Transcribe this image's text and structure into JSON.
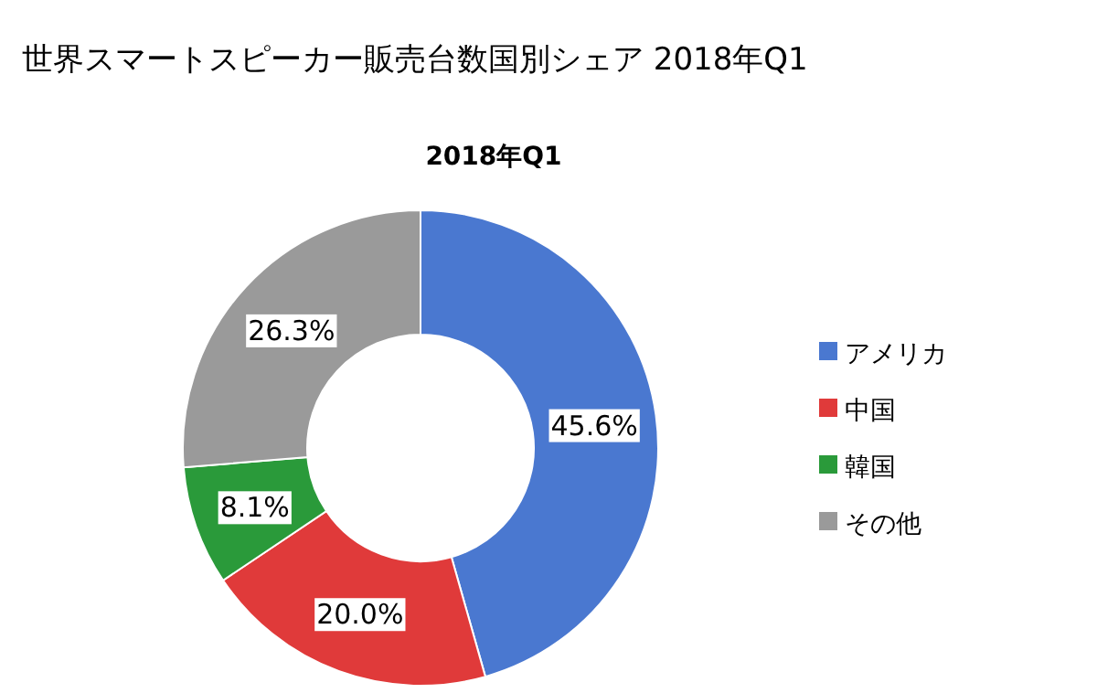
{
  "chart_data": {
    "type": "donut",
    "title": "世界スマートスピーカー販売台数国別シェア 2018年Q1",
    "subtitle": "2018年Q1",
    "categories": [
      "アメリカ",
      "中国",
      "韓国",
      "その他"
    ],
    "values": [
      45.6,
      20.0,
      8.1,
      26.3
    ],
    "value_labels": [
      "45.6%",
      "20.0%",
      "8.1%",
      "26.3%"
    ],
    "colors": [
      "#4a78d0",
      "#e03a3a",
      "#2a9a3a",
      "#9a9a9a"
    ],
    "legend": "right"
  }
}
